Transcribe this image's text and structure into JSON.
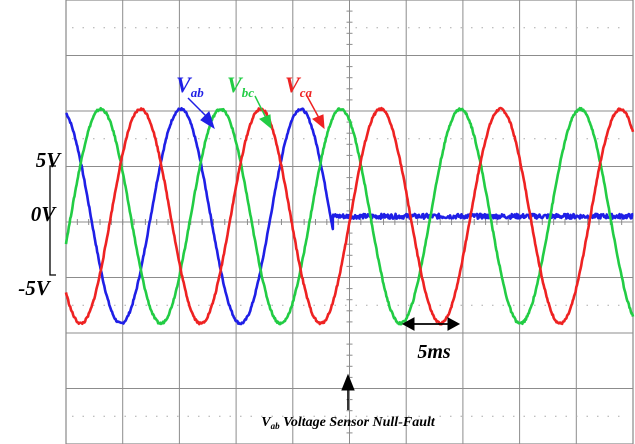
{
  "chart_data": {
    "type": "line",
    "title": "",
    "xlabel": "",
    "ylabel": "",
    "y_ticks": [
      {
        "label": "5V",
        "value": 5
      },
      {
        "label": "0V",
        "value": 0
      },
      {
        "label": "-5V",
        "value": -5
      }
    ],
    "ylim": [
      -11.9,
      11.3
    ],
    "x_unit": "ms",
    "xlim": [
      0,
      47.3
    ],
    "grid": true,
    "time_scale": {
      "label": "5ms",
      "span_ms": 5
    },
    "annotation": {
      "prefix": "V",
      "sub": "ab",
      "text": " Voltage Sensor Null-Fault",
      "fault_time_ms": 22.26
    },
    "series": [
      {
        "name": "V",
        "sub": "ab",
        "color": "#1f1fe6",
        "amplitude": 5.6,
        "period_ms": 10,
        "zero_cross_ms": 17.07,
        "trace_ms": [
          0,
          47.3
        ],
        "after_fault": 0
      },
      {
        "name": "V",
        "sub": "bc",
        "color": "#22cc44",
        "amplitude": 5.6,
        "period_ms": 10,
        "zero_cross_ms": 20.4,
        "trace_ms": [
          0,
          47.3
        ]
      },
      {
        "name": "V",
        "sub": "ca",
        "color": "#ee2222",
        "amplitude": 5.6,
        "period_ms": 10,
        "zero_cross_ms": 13.74,
        "trace_ms": [
          0,
          47.3
        ]
      }
    ]
  }
}
